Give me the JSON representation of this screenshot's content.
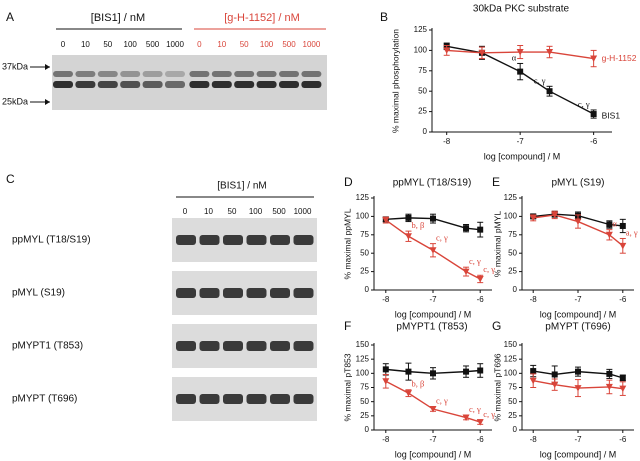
{
  "blot_a": {
    "panel": "A",
    "groups": [
      "[BIS1] / nM",
      "[g-H-1152] / nM"
    ],
    "lanes": [
      "0",
      "10",
      "50",
      "100",
      "500",
      "1000",
      "0",
      "10",
      "50",
      "100",
      "500",
      "1000"
    ],
    "markers": [
      "37kDa",
      "25kDa"
    ]
  },
  "blot_c": {
    "panel": "C",
    "group": "[BIS1] / nM",
    "lanes": [
      "0",
      "10",
      "50",
      "100",
      "500",
      "1000"
    ],
    "rows": [
      "ppMYL (T18/S19)",
      "pMYL (S19)",
      "pMYPT1 (T853)",
      "pMYPT (T696)"
    ]
  },
  "chart_data": [
    {
      "type": "line",
      "panel": "B",
      "title": "30kDa PKC substrate",
      "xlabel": "log [compound] / M",
      "ylabel": "% maximal phosphorylation",
      "x": [
        -8,
        -7.52,
        -7,
        -6.6,
        -6
      ],
      "xlim": [
        -8.2,
        -5.75
      ],
      "xticks": [
        -8,
        -7,
        -6
      ],
      "ylim": [
        0,
        125
      ],
      "yticks": [
        0,
        25,
        50,
        75,
        100,
        125
      ],
      "series": [
        {
          "name": "BIS1",
          "color": "#111111",
          "marker": "square",
          "values": [
            105,
            97,
            74,
            50,
            22
          ],
          "errors": [
            4,
            8,
            10,
            6,
            5
          ],
          "annotations": [
            null,
            null,
            "α",
            "c, γ",
            "c, γ"
          ]
        },
        {
          "name": "g-H-1152",
          "color": "#d9453a",
          "marker": "triangle",
          "values": [
            100,
            97,
            98,
            98,
            90
          ],
          "errors": [
            6,
            7,
            8,
            7,
            10
          ],
          "annotations": [
            null,
            null,
            null,
            null,
            null
          ]
        }
      ]
    },
    {
      "type": "line",
      "panel": "D",
      "title": "ppMYL (T18/S19)",
      "xlabel": "log [compound] / M",
      "ylabel": "% maximal ppMYL",
      "x": [
        -8,
        -7.52,
        -7,
        -6.3,
        -6
      ],
      "xlim": [
        -8.25,
        -5.75
      ],
      "xticks": [
        -8,
        -7,
        -6
      ],
      "ylim": [
        0,
        125
      ],
      "yticks": [
        0,
        25,
        50,
        75,
        100,
        125
      ],
      "series": [
        {
          "color": "#111111",
          "marker": "square",
          "values": [
            96,
            98,
            97,
            84,
            82
          ],
          "errors": [
            3,
            5,
            6,
            5,
            10
          ],
          "annotations": [
            null,
            null,
            null,
            null,
            null
          ]
        },
        {
          "color": "#d9453a",
          "marker": "triangle",
          "values": [
            95,
            73,
            54,
            25,
            15
          ],
          "errors": [
            4,
            7,
            9,
            6,
            5
          ],
          "annotations": [
            null,
            "b, β",
            "c, γ",
            "c, γ",
            "c, γ"
          ]
        }
      ]
    },
    {
      "type": "line",
      "panel": "E",
      "title": "pMYL (S19)",
      "xlabel": "log [compound] / M",
      "ylabel": "% maximal pMYL",
      "x": [
        -8,
        -7.52,
        -7,
        -6.3,
        -6
      ],
      "xlim": [
        -8.25,
        -5.75
      ],
      "xticks": [
        -8,
        -7,
        -6
      ],
      "ylim": [
        0,
        125
      ],
      "yticks": [
        0,
        25,
        50,
        75,
        100,
        125
      ],
      "series": [
        {
          "color": "#111111",
          "marker": "square",
          "values": [
            100,
            103,
            101,
            89,
            87
          ],
          "errors": [
            3,
            4,
            5,
            5,
            9
          ],
          "annotations": [
            null,
            null,
            null,
            null,
            null
          ]
        },
        {
          "color": "#d9453a",
          "marker": "triangle",
          "values": [
            98,
            102,
            93,
            75,
            60
          ],
          "errors": [
            4,
            5,
            9,
            7,
            10
          ],
          "annotations": [
            null,
            null,
            null,
            "α",
            "a, γ"
          ]
        }
      ]
    },
    {
      "type": "line",
      "panel": "F",
      "title": "pMYPT1 (T853)",
      "xlabel": "log [compound] / M",
      "ylabel": "% maximal pT853",
      "x": [
        -8,
        -7.52,
        -7,
        -6.3,
        -6
      ],
      "xlim": [
        -8.25,
        -5.75
      ],
      "xticks": [
        -8,
        -7,
        -6
      ],
      "ylim": [
        0,
        150
      ],
      "yticks": [
        0,
        25,
        50,
        75,
        100,
        125,
        150
      ],
      "series": [
        {
          "color": "#111111",
          "marker": "square",
          "values": [
            107,
            103,
            100,
            103,
            105
          ],
          "errors": [
            10,
            15,
            10,
            10,
            12
          ],
          "annotations": [
            null,
            null,
            null,
            null,
            null
          ]
        },
        {
          "color": "#d9453a",
          "marker": "triangle",
          "values": [
            86,
            65,
            37,
            22,
            14
          ],
          "errors": [
            12,
            6,
            4,
            4,
            4
          ],
          "annotations": [
            null,
            "b, β",
            "c, γ",
            "c, γ",
            "c, γ"
          ]
        }
      ]
    },
    {
      "type": "line",
      "panel": "G",
      "title": "pMYPT (T696)",
      "xlabel": "log [compound] / M",
      "ylabel": "% maximal pT696",
      "x": [
        -8,
        -7.52,
        -7,
        -6.3,
        -6
      ],
      "xlim": [
        -8.25,
        -5.75
      ],
      "xticks": [
        -8,
        -7,
        -6
      ],
      "ylim": [
        0,
        150
      ],
      "yticks": [
        0,
        25,
        50,
        75,
        100,
        125,
        150
      ],
      "series": [
        {
          "color": "#111111",
          "marker": "square",
          "values": [
            104,
            98,
            103,
            99,
            92
          ],
          "errors": [
            10,
            15,
            8,
            8,
            5
          ],
          "annotations": [
            null,
            null,
            null,
            null,
            null
          ]
        },
        {
          "color": "#d9453a",
          "marker": "triangle",
          "values": [
            87,
            80,
            74,
            76,
            73
          ],
          "errors": [
            12,
            10,
            15,
            12,
            12
          ],
          "annotations": [
            null,
            null,
            null,
            null,
            null
          ]
        }
      ]
    }
  ]
}
